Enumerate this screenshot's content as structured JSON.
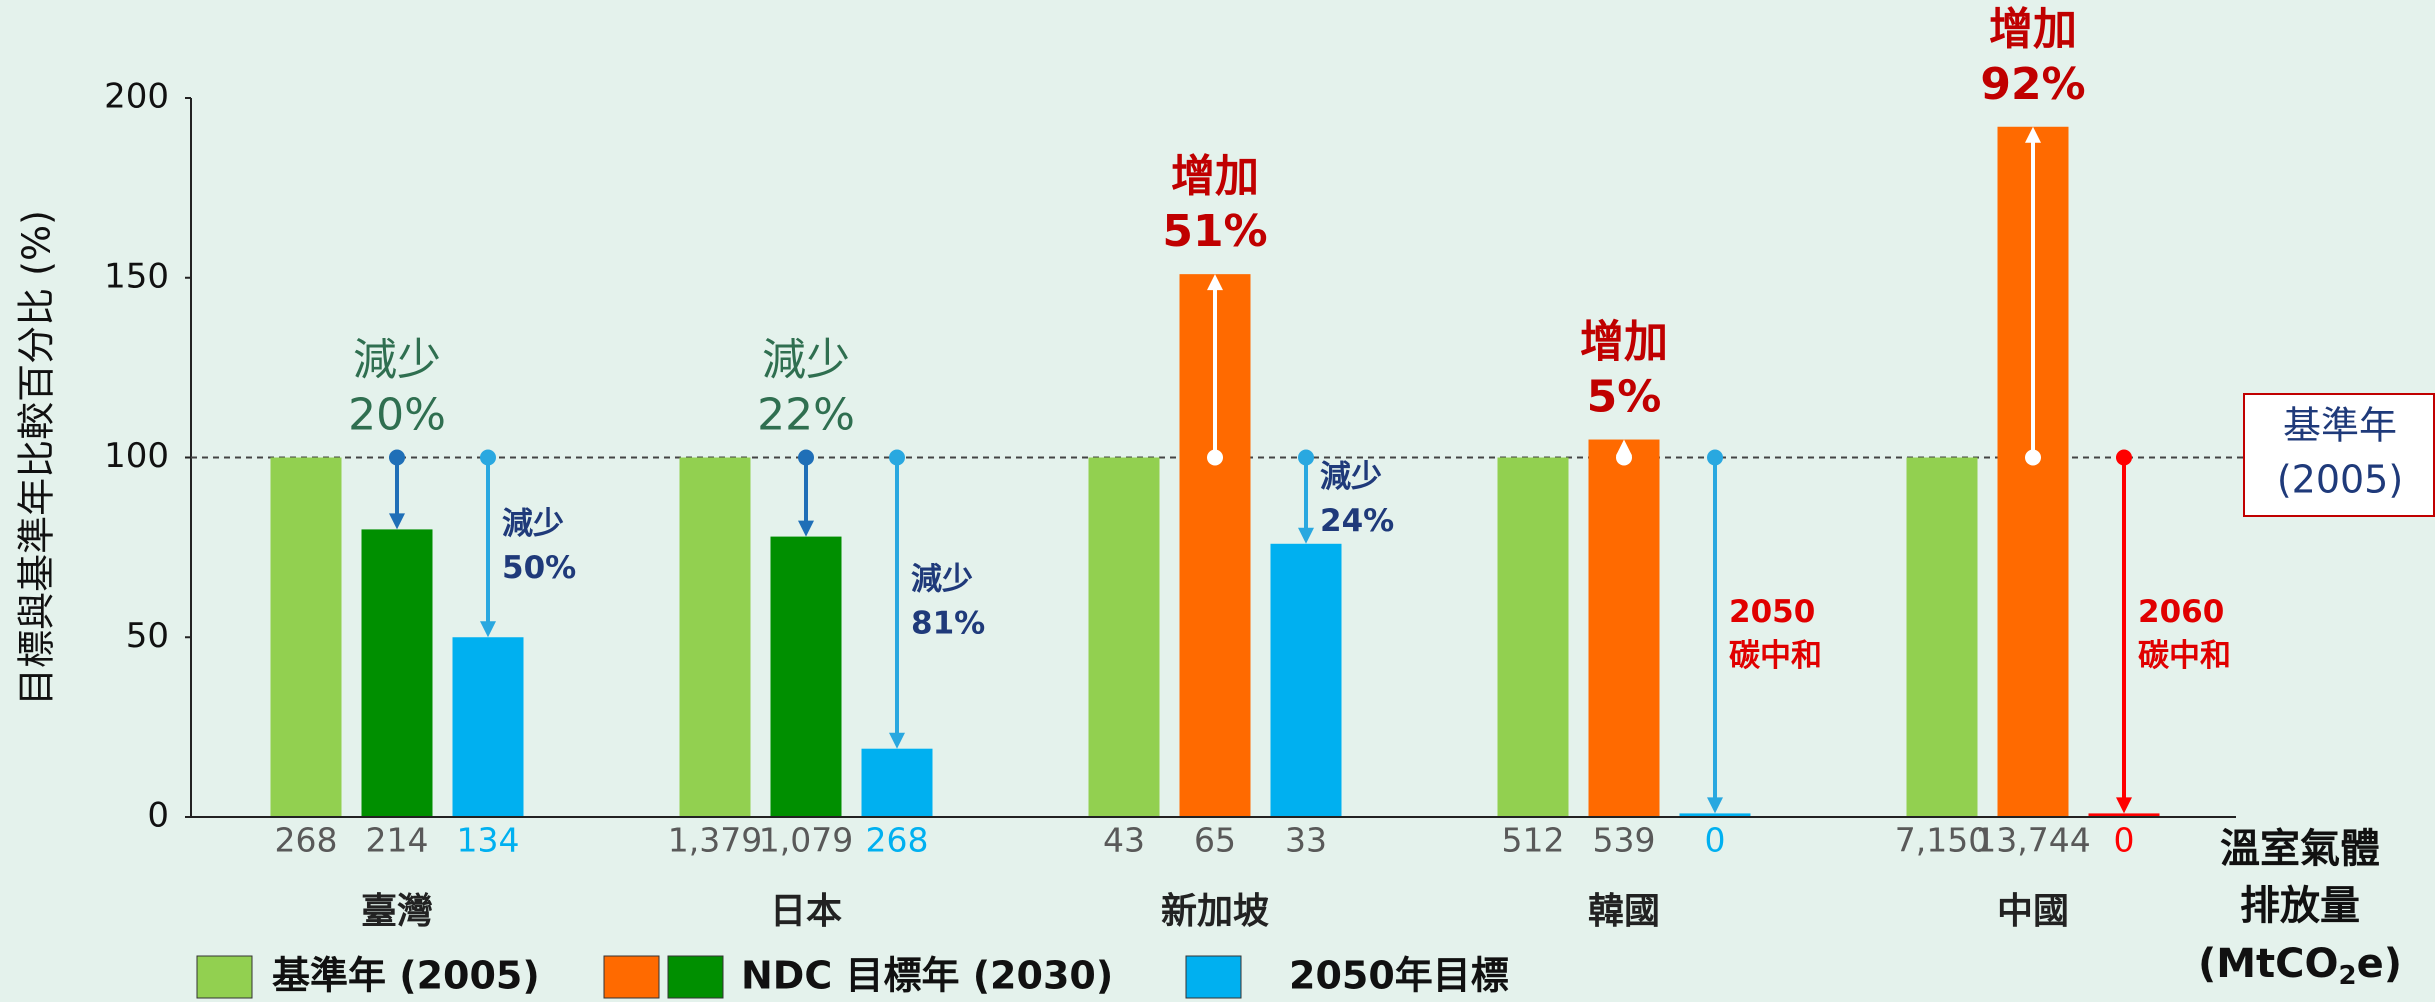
{
  "chart_data": {
    "type": "bar",
    "y_label": "目標與基準年比較百分比 (%)",
    "categories": [
      "臺灣",
      "日本",
      "新加坡",
      "韓國",
      "中國"
    ],
    "series": [
      {
        "name": "基準年 (2005)",
        "colors": [
          "#92d050",
          "#92d050",
          "#92d050",
          "#92d050",
          "#92d050"
        ],
        "legend_colors": [
          "#92d050"
        ],
        "values": [
          100,
          100,
          100,
          100,
          100
        ],
        "emissions": [
          268,
          1379,
          43,
          512,
          7150
        ],
        "emission_labels": [
          "268",
          "1,379",
          "43",
          "512",
          "7,150"
        ],
        "label_colors": [
          "#595959",
          "#595959",
          "#595959",
          "#595959",
          "#595959"
        ]
      },
      {
        "name": "NDC 目標年 (2030)",
        "colors": [
          "#008f00",
          "#008f00",
          "#ff6a00",
          "#ff6a00",
          "#ff6a00"
        ],
        "legend_colors": [
          "#ff6a00",
          "#008f00"
        ],
        "values": [
          80,
          78,
          151,
          105,
          192
        ],
        "emissions": [
          214,
          1079,
          65,
          539,
          13744
        ],
        "emission_labels": [
          "214",
          "1,079",
          "65",
          "539",
          "13,744"
        ],
        "label_colors": [
          "#595959",
          "#595959",
          "#595959",
          "#595959",
          "#595959"
        ]
      },
      {
        "name": "2050年目標",
        "colors": [
          "#00b0f0",
          "#00b0f0",
          "#00b0f0",
          "#00b0f0",
          "#ff0000"
        ],
        "legend_colors": [
          "#00b0f0"
        ],
        "values": [
          50,
          19,
          76,
          1,
          1
        ],
        "emissions": [
          134,
          268,
          33,
          0,
          0
        ],
        "emission_labels": [
          "134",
          "268",
          "33",
          "0",
          "0"
        ],
        "label_colors": [
          "#00b0f0",
          "#00b0f0",
          "#595959",
          "#00b0f0",
          "#ff0000"
        ]
      }
    ],
    "ylim": [
      0,
      200
    ],
    "yticks": [
      0,
      50,
      100,
      150,
      200
    ],
    "reference_line": {
      "value": 100,
      "lines": [
        "基準年",
        "(2005)"
      ]
    },
    "emissions_label": {
      "lines": [
        "溫室氣體",
        "排放量"
      ],
      "unit_pre": "(MtCO",
      "unit_sub": "2",
      "unit_post": "e)"
    },
    "annotations": [
      {
        "category": 0,
        "series": 1,
        "style": "big",
        "lines": [
          "減少",
          "20%"
        ],
        "color": "#2f6f50",
        "arrow_color": "#1f6fb7"
      },
      {
        "category": 0,
        "series": 2,
        "style": "small",
        "lines": [
          "減少",
          "50%"
        ],
        "color": "#1f3a7a",
        "arrow_color": "#29a8e0"
      },
      {
        "category": 1,
        "series": 1,
        "style": "big",
        "lines": [
          "減少",
          "22%"
        ],
        "color": "#2f6f50",
        "arrow_color": "#1f6fb7"
      },
      {
        "category": 1,
        "series": 2,
        "style": "small",
        "lines": [
          "減少",
          "81%"
        ],
        "color": "#1f3a7a",
        "arrow_color": "#29a8e0"
      },
      {
        "category": 2,
        "series": 1,
        "style": "big",
        "lines": [
          "增加",
          "51%"
        ],
        "color": "#c00000",
        "arrow_color": "#ffffff"
      },
      {
        "category": 2,
        "series": 2,
        "style": "small",
        "lines": [
          "減少",
          "24%"
        ],
        "color": "#1f3a7a",
        "arrow_color": "#29a8e0"
      },
      {
        "category": 3,
        "series": 1,
        "style": "big",
        "lines": [
          "增加",
          "5%"
        ],
        "color": "#c00000",
        "arrow_color": "#ffffff"
      },
      {
        "category": 3,
        "series": 2,
        "style": "small",
        "lines": [
          "2050",
          "碳中和"
        ],
        "color": "#e00000",
        "arrow_color": "#29a8e0"
      },
      {
        "category": 4,
        "series": 1,
        "style": "big",
        "lines": [
          "增加",
          "92%"
        ],
        "color": "#c00000",
        "arrow_color": "#ffffff"
      },
      {
        "category": 4,
        "series": 2,
        "style": "small",
        "lines": [
          "2060",
          "碳中和"
        ],
        "color": "#e00000",
        "arrow_color": "#ff0000"
      }
    ]
  }
}
